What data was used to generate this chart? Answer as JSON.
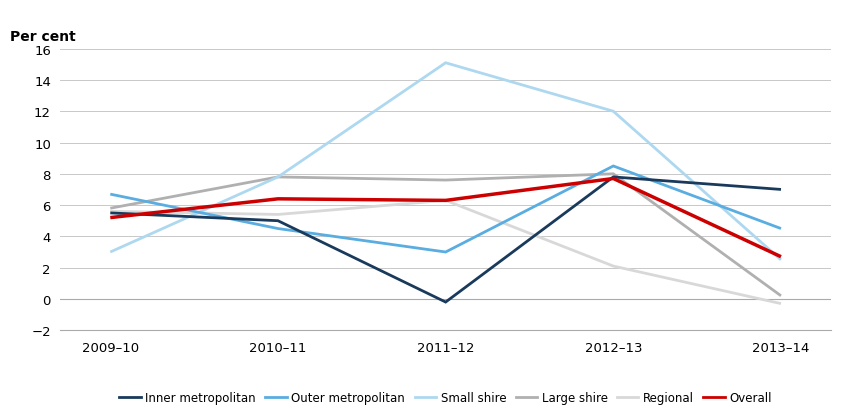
{
  "x_labels": [
    "2009–10",
    "2010–11",
    "2011–12",
    "2012–13",
    "2013–14"
  ],
  "series": {
    "Inner metropolitan": {
      "values": [
        5.5,
        5.0,
        -0.2,
        7.8,
        7.0
      ],
      "color": "#1a3a5c",
      "linewidth": 2.0,
      "zorder": 5
    },
    "Outer metropolitan": {
      "values": [
        6.7,
        4.5,
        3.0,
        8.5,
        4.5
      ],
      "color": "#5aade0",
      "linewidth": 2.0,
      "zorder": 4
    },
    "Small shire": {
      "values": [
        3.0,
        7.8,
        15.1,
        12.0,
        2.5
      ],
      "color": "#add8f0",
      "linewidth": 2.0,
      "zorder": 3
    },
    "Large shire": {
      "values": [
        5.8,
        7.8,
        7.6,
        8.0,
        0.2
      ],
      "color": "#b0b0b0",
      "linewidth": 2.0,
      "zorder": 2
    },
    "Regional": {
      "values": [
        5.6,
        5.4,
        6.3,
        2.1,
        -0.3
      ],
      "color": "#d8d8d8",
      "linewidth": 2.0,
      "zorder": 2
    },
    "Overall": {
      "values": [
        5.2,
        6.4,
        6.3,
        7.7,
        2.7
      ],
      "color": "#cc0000",
      "linewidth": 2.5,
      "zorder": 6
    }
  },
  "ylabel": "Per cent",
  "ylim": [
    -2,
    16
  ],
  "yticks": [
    -2,
    0,
    2,
    4,
    6,
    8,
    10,
    12,
    14,
    16
  ],
  "background_color": "#ffffff",
  "grid_color": "#c8c8c8",
  "legend_order": [
    "Inner metropolitan",
    "Outer metropolitan",
    "Small shire",
    "Large shire",
    "Regional",
    "Overall"
  ]
}
